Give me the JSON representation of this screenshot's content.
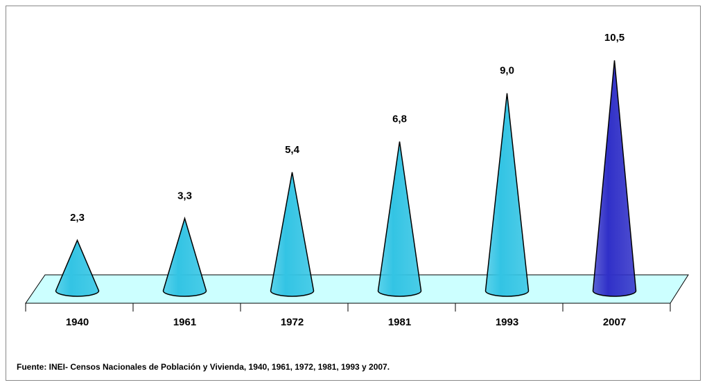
{
  "chart_data": {
    "type": "cone",
    "categories": [
      "1940",
      "1961",
      "1972",
      "1981",
      "1993",
      "2007"
    ],
    "values": [
      2.3,
      3.3,
      5.4,
      6.8,
      9.0,
      10.5
    ],
    "value_labels": [
      "2,3",
      "3,3",
      "5,4",
      "6,8",
      "9,0",
      "10,5"
    ],
    "colors": [
      "#33c4e4",
      "#33c4e4",
      "#33c4e4",
      "#33c4e4",
      "#33c4e4",
      "#3030c8"
    ],
    "source": "Fuente: INEI- Censos Nacionales de Población y Vivienda, 1940, 1961, 1972, 1981, 1993 y 2007."
  }
}
